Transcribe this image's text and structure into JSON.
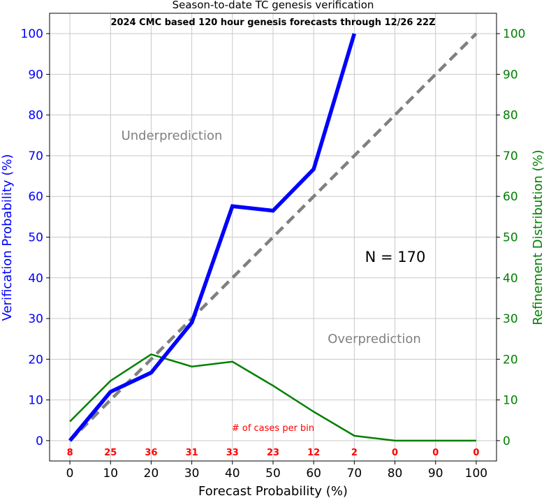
{
  "chart_data": {
    "type": "line",
    "title": "Season-to-date TC genesis verification",
    "subtitle": "2024 CMC based 120 hour genesis forecasts through 12/26 22Z",
    "xlabel": "Forecast Probability (%)",
    "ylabel_left": "Verification Probability (%)",
    "ylabel_right": "Refinement Distribution (%)",
    "xlim": [
      -5,
      105
    ],
    "ylim": [
      -5,
      105
    ],
    "grid": true,
    "x_ticks": [
      0,
      10,
      20,
      30,
      40,
      50,
      60,
      70,
      80,
      90,
      100
    ],
    "y_ticks": [
      0,
      10,
      20,
      30,
      40,
      50,
      60,
      70,
      80,
      90,
      100
    ],
    "x": [
      0,
      10,
      20,
      30,
      40,
      50,
      60,
      70,
      80,
      90,
      100
    ],
    "series": [
      {
        "role": "verification",
        "color": "#0000ff",
        "axis": "left",
        "values": [
          0,
          12,
          16.7,
          29,
          57.6,
          56.5,
          66.7,
          100,
          null,
          null,
          null
        ]
      },
      {
        "role": "refinement",
        "color": "#008000",
        "axis": "right",
        "values": [
          4.7,
          14.7,
          21.2,
          18.2,
          19.4,
          13.5,
          7.1,
          1.2,
          0,
          0,
          0
        ]
      },
      {
        "role": "perfect_reliability",
        "color": "#808080",
        "dash": "dashed",
        "values": [
          0,
          10,
          20,
          30,
          40,
          50,
          60,
          70,
          80,
          90,
          100
        ]
      }
    ],
    "annotations": {
      "underprediction": "Underprediction",
      "overprediction": "Overprediction",
      "n_label": "N = 170",
      "cases_label": "# of cases per bin"
    },
    "cases_per_bin": [
      8,
      25,
      36,
      31,
      33,
      23,
      12,
      2,
      0,
      0,
      0
    ],
    "colors": {
      "left_axis": "#0000ff",
      "right_axis": "#008000",
      "cases": "#ff0000",
      "annotation": "#808080",
      "grid": "#c8c8c8"
    }
  }
}
